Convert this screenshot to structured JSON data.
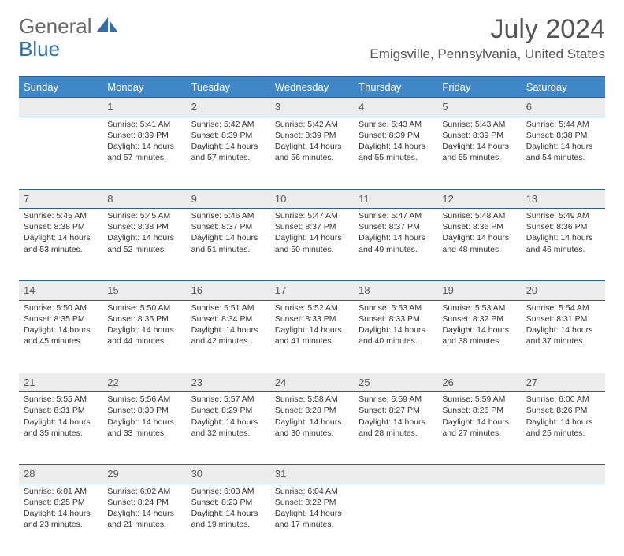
{
  "logo": {
    "text1": "General",
    "text2": "Blue"
  },
  "title": "July 2024",
  "location": "Emigsville, Pennsylvania, United States",
  "header_bg": "#3f87c7",
  "header_border": "#2d5f8f",
  "daynum_bg": "#ececec",
  "dayNames": [
    "Sunday",
    "Monday",
    "Tuesday",
    "Wednesday",
    "Thursday",
    "Friday",
    "Saturday"
  ],
  "weeks": [
    [
      {
        "num": "",
        "lines": []
      },
      {
        "num": "1",
        "lines": [
          "Sunrise: 5:41 AM",
          "Sunset: 8:39 PM",
          "Daylight: 14 hours",
          "and 57 minutes."
        ]
      },
      {
        "num": "2",
        "lines": [
          "Sunrise: 5:42 AM",
          "Sunset: 8:39 PM",
          "Daylight: 14 hours",
          "and 57 minutes."
        ]
      },
      {
        "num": "3",
        "lines": [
          "Sunrise: 5:42 AM",
          "Sunset: 8:39 PM",
          "Daylight: 14 hours",
          "and 56 minutes."
        ]
      },
      {
        "num": "4",
        "lines": [
          "Sunrise: 5:43 AM",
          "Sunset: 8:39 PM",
          "Daylight: 14 hours",
          "and 55 minutes."
        ]
      },
      {
        "num": "5",
        "lines": [
          "Sunrise: 5:43 AM",
          "Sunset: 8:39 PM",
          "Daylight: 14 hours",
          "and 55 minutes."
        ]
      },
      {
        "num": "6",
        "lines": [
          "Sunrise: 5:44 AM",
          "Sunset: 8:38 PM",
          "Daylight: 14 hours",
          "and 54 minutes."
        ]
      }
    ],
    [
      {
        "num": "7",
        "lines": [
          "Sunrise: 5:45 AM",
          "Sunset: 8:38 PM",
          "Daylight: 14 hours",
          "and 53 minutes."
        ]
      },
      {
        "num": "8",
        "lines": [
          "Sunrise: 5:45 AM",
          "Sunset: 8:38 PM",
          "Daylight: 14 hours",
          "and 52 minutes."
        ]
      },
      {
        "num": "9",
        "lines": [
          "Sunrise: 5:46 AM",
          "Sunset: 8:37 PM",
          "Daylight: 14 hours",
          "and 51 minutes."
        ]
      },
      {
        "num": "10",
        "lines": [
          "Sunrise: 5:47 AM",
          "Sunset: 8:37 PM",
          "Daylight: 14 hours",
          "and 50 minutes."
        ]
      },
      {
        "num": "11",
        "lines": [
          "Sunrise: 5:47 AM",
          "Sunset: 8:37 PM",
          "Daylight: 14 hours",
          "and 49 minutes."
        ]
      },
      {
        "num": "12",
        "lines": [
          "Sunrise: 5:48 AM",
          "Sunset: 8:36 PM",
          "Daylight: 14 hours",
          "and 48 minutes."
        ]
      },
      {
        "num": "13",
        "lines": [
          "Sunrise: 5:49 AM",
          "Sunset: 8:36 PM",
          "Daylight: 14 hours",
          "and 46 minutes."
        ]
      }
    ],
    [
      {
        "num": "14",
        "lines": [
          "Sunrise: 5:50 AM",
          "Sunset: 8:35 PM",
          "Daylight: 14 hours",
          "and 45 minutes."
        ]
      },
      {
        "num": "15",
        "lines": [
          "Sunrise: 5:50 AM",
          "Sunset: 8:35 PM",
          "Daylight: 14 hours",
          "and 44 minutes."
        ]
      },
      {
        "num": "16",
        "lines": [
          "Sunrise: 5:51 AM",
          "Sunset: 8:34 PM",
          "Daylight: 14 hours",
          "and 42 minutes."
        ]
      },
      {
        "num": "17",
        "lines": [
          "Sunrise: 5:52 AM",
          "Sunset: 8:33 PM",
          "Daylight: 14 hours",
          "and 41 minutes."
        ]
      },
      {
        "num": "18",
        "lines": [
          "Sunrise: 5:53 AM",
          "Sunset: 8:33 PM",
          "Daylight: 14 hours",
          "and 40 minutes."
        ]
      },
      {
        "num": "19",
        "lines": [
          "Sunrise: 5:53 AM",
          "Sunset: 8:32 PM",
          "Daylight: 14 hours",
          "and 38 minutes."
        ]
      },
      {
        "num": "20",
        "lines": [
          "Sunrise: 5:54 AM",
          "Sunset: 8:31 PM",
          "Daylight: 14 hours",
          "and 37 minutes."
        ]
      }
    ],
    [
      {
        "num": "21",
        "lines": [
          "Sunrise: 5:55 AM",
          "Sunset: 8:31 PM",
          "Daylight: 14 hours",
          "and 35 minutes."
        ]
      },
      {
        "num": "22",
        "lines": [
          "Sunrise: 5:56 AM",
          "Sunset: 8:30 PM",
          "Daylight: 14 hours",
          "and 33 minutes."
        ]
      },
      {
        "num": "23",
        "lines": [
          "Sunrise: 5:57 AM",
          "Sunset: 8:29 PM",
          "Daylight: 14 hours",
          "and 32 minutes."
        ]
      },
      {
        "num": "24",
        "lines": [
          "Sunrise: 5:58 AM",
          "Sunset: 8:28 PM",
          "Daylight: 14 hours",
          "and 30 minutes."
        ]
      },
      {
        "num": "25",
        "lines": [
          "Sunrise: 5:59 AM",
          "Sunset: 8:27 PM",
          "Daylight: 14 hours",
          "and 28 minutes."
        ]
      },
      {
        "num": "26",
        "lines": [
          "Sunrise: 5:59 AM",
          "Sunset: 8:26 PM",
          "Daylight: 14 hours",
          "and 27 minutes."
        ]
      },
      {
        "num": "27",
        "lines": [
          "Sunrise: 6:00 AM",
          "Sunset: 8:26 PM",
          "Daylight: 14 hours",
          "and 25 minutes."
        ]
      }
    ],
    [
      {
        "num": "28",
        "lines": [
          "Sunrise: 6:01 AM",
          "Sunset: 8:25 PM",
          "Daylight: 14 hours",
          "and 23 minutes."
        ]
      },
      {
        "num": "29",
        "lines": [
          "Sunrise: 6:02 AM",
          "Sunset: 8:24 PM",
          "Daylight: 14 hours",
          "and 21 minutes."
        ]
      },
      {
        "num": "30",
        "lines": [
          "Sunrise: 6:03 AM",
          "Sunset: 8:23 PM",
          "Daylight: 14 hours",
          "and 19 minutes."
        ]
      },
      {
        "num": "31",
        "lines": [
          "Sunrise: 6:04 AM",
          "Sunset: 8:22 PM",
          "Daylight: 14 hours",
          "and 17 minutes."
        ]
      },
      {
        "num": "",
        "lines": []
      },
      {
        "num": "",
        "lines": []
      },
      {
        "num": "",
        "lines": []
      }
    ]
  ]
}
